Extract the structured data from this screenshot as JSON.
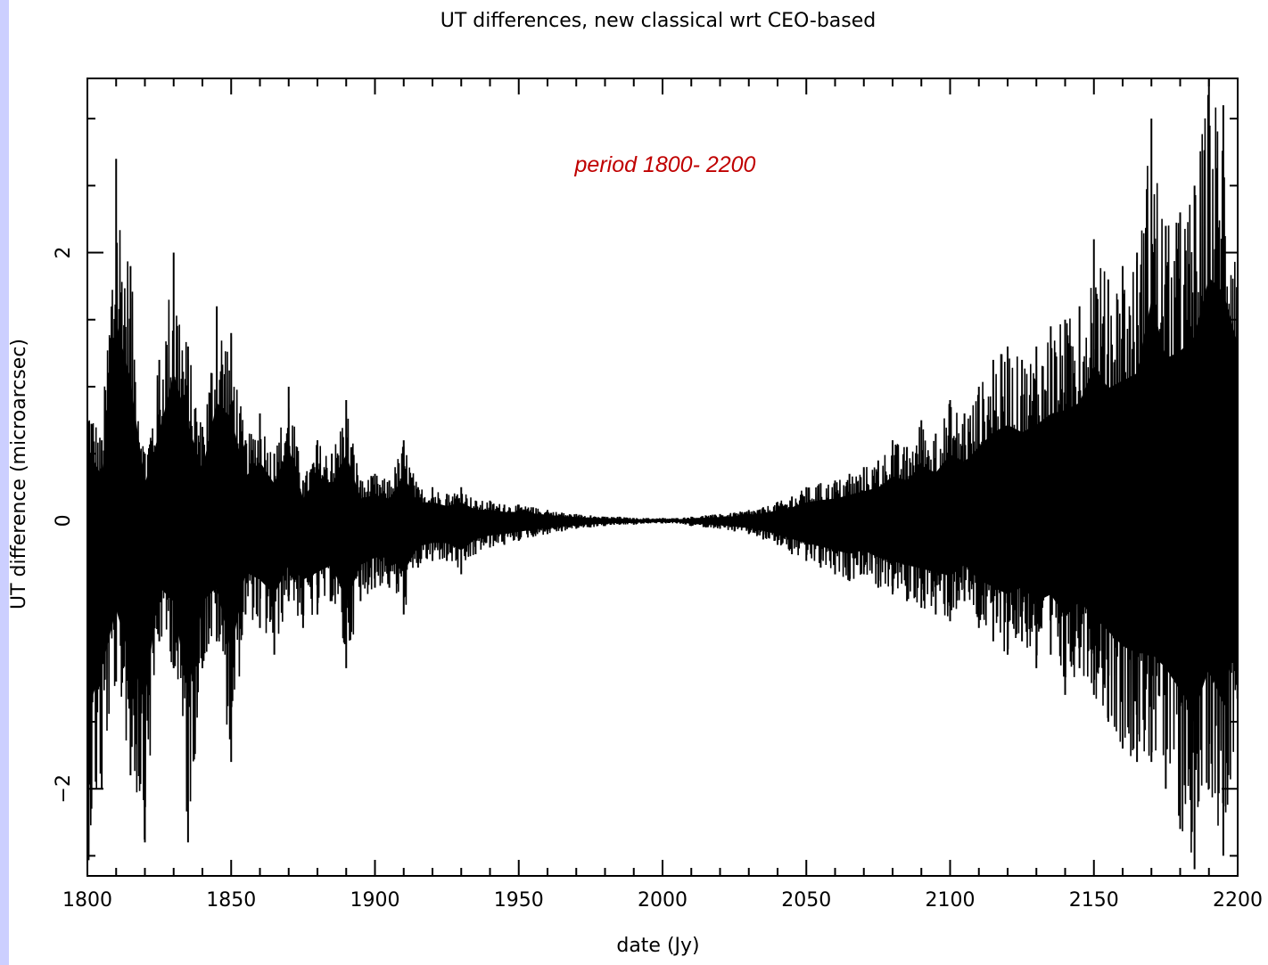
{
  "chart_data": {
    "type": "line",
    "title": "UT differences, new classical wrt CEO-based",
    "xlabel": "date (Jy)",
    "ylabel": "UT difference (microarcsec)",
    "annotation": "period 1800- 2200",
    "xlim": [
      1800,
      2200
    ],
    "ylim": [
      -2.65,
      3.3
    ],
    "x_ticks": [
      1800,
      1850,
      1900,
      1950,
      2000,
      2050,
      2100,
      2150,
      2200
    ],
    "x_tick_labels": [
      "1800",
      "1850",
      "1900",
      "1950",
      "2000",
      "2050",
      "2100",
      "2150",
      "2200"
    ],
    "y_ticks": [
      -2,
      0,
      2
    ],
    "y_tick_labels": [
      "−2",
      "0",
      "2"
    ],
    "grid": false,
    "line_color": "#000000",
    "annotation_color": "#c00000",
    "series": [
      {
        "x": [
          1800,
          1805,
          1810,
          1815,
          1820,
          1825,
          1830,
          1835,
          1840,
          1845,
          1850,
          1855,
          1860,
          1865,
          1870,
          1875,
          1880,
          1885,
          1890,
          1895,
          1900,
          1905,
          1910,
          1915,
          1920,
          1925,
          1930,
          1935,
          1940,
          1945,
          1950,
          1955,
          1960,
          1965,
          1970,
          1975,
          1980,
          1985,
          1990,
          1995,
          2000,
          2005,
          2010,
          2015,
          2020,
          2025,
          2030,
          2035,
          2040,
          2045,
          2050,
          2055,
          2060,
          2065,
          2070,
          2075,
          2080,
          2085,
          2090,
          2095,
          2100,
          2105,
          2110,
          2115,
          2120,
          2125,
          2130,
          2135,
          2140,
          2145,
          2150,
          2155,
          2160,
          2165,
          2170,
          2175,
          2180,
          2185,
          2190,
          2195,
          2200
        ],
        "upper": [
          1.0,
          0.6,
          2.7,
          1.9,
          0.5,
          1.2,
          2.0,
          1.3,
          0.7,
          1.6,
          1.4,
          0.6,
          0.8,
          0.5,
          1.0,
          0.3,
          0.6,
          0.5,
          0.9,
          0.3,
          0.35,
          0.3,
          0.6,
          0.25,
          0.25,
          0.2,
          0.25,
          0.15,
          0.15,
          0.12,
          0.12,
          0.1,
          0.08,
          0.06,
          0.05,
          0.04,
          0.03,
          0.03,
          0.02,
          0.02,
          0.02,
          0.02,
          0.03,
          0.04,
          0.05,
          0.06,
          0.08,
          0.1,
          0.14,
          0.18,
          0.25,
          0.28,
          0.3,
          0.35,
          0.4,
          0.45,
          0.6,
          0.55,
          0.75,
          0.65,
          0.9,
          0.8,
          1.0,
          1.2,
          1.3,
          1.2,
          1.3,
          1.45,
          1.5,
          1.6,
          2.1,
          1.8,
          1.9,
          2.0,
          3.0,
          2.2,
          2.3,
          2.5,
          3.3,
          3.1,
          2.4
        ],
        "lower": [
          -2.6,
          -2.0,
          -1.2,
          -1.9,
          -2.4,
          -0.9,
          -1.1,
          -2.4,
          -1.1,
          -0.9,
          -1.8,
          -0.7,
          -0.8,
          -1.0,
          -0.6,
          -0.8,
          -0.7,
          -0.6,
          -1.1,
          -0.6,
          -0.5,
          -0.5,
          -0.7,
          -0.35,
          -0.3,
          -0.3,
          -0.4,
          -0.25,
          -0.2,
          -0.18,
          -0.15,
          -0.12,
          -0.1,
          -0.08,
          -0.06,
          -0.05,
          -0.04,
          -0.03,
          -0.03,
          -0.02,
          -0.02,
          -0.02,
          -0.04,
          -0.05,
          -0.06,
          -0.08,
          -0.1,
          -0.14,
          -0.18,
          -0.25,
          -0.3,
          -0.35,
          -0.4,
          -0.45,
          -0.4,
          -0.5,
          -0.55,
          -0.6,
          -0.65,
          -0.7,
          -0.75,
          -0.6,
          -0.8,
          -0.9,
          -1.0,
          -0.9,
          -1.1,
          -1.0,
          -1.3,
          -1.1,
          -1.3,
          -1.5,
          -1.7,
          -1.8,
          -1.8,
          -2.0,
          -2.3,
          -2.6,
          -2.0,
          -2.5,
          -1.4
        ]
      }
    ]
  }
}
